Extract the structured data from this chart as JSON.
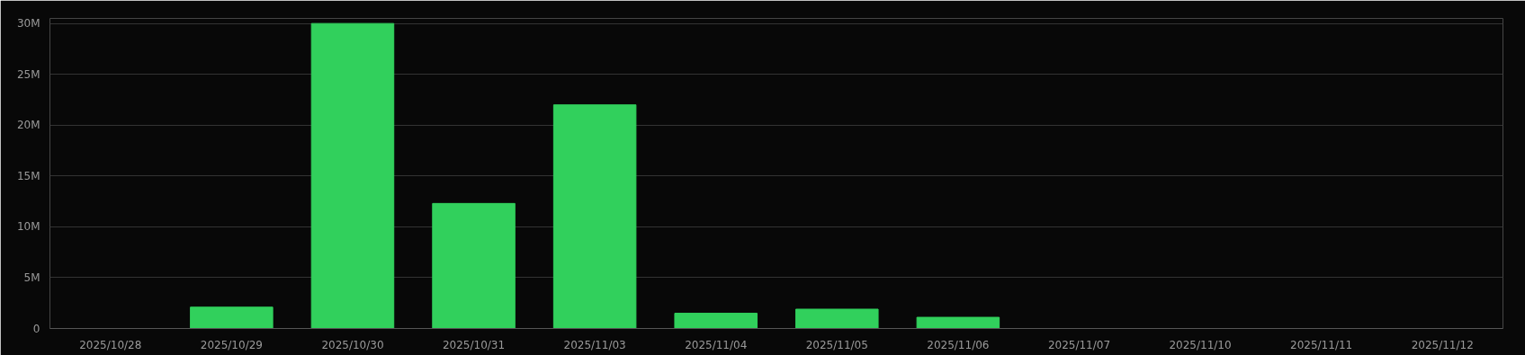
{
  "chart_data": {
    "type": "bar",
    "categories": [
      "2025/10/28",
      "2025/10/29",
      "2025/10/30",
      "2025/10/31",
      "2025/11/03",
      "2025/11/04",
      "2025/11/05",
      "2025/11/06",
      "2025/11/07",
      "2025/11/10",
      "2025/11/11",
      "2025/11/12"
    ],
    "series": [
      {
        "color": "#31d05c",
        "values": [
          0,
          2.1,
          30.0,
          12.3,
          22.0,
          1.5,
          1.9,
          1.1,
          0,
          0,
          0,
          0
        ]
      }
    ],
    "ylim": [
      0,
      30.5
    ],
    "yticks": [
      {
        "value": 0,
        "label": "0"
      },
      {
        "value": 5,
        "label": "5M"
      },
      {
        "value": 10,
        "label": "10M"
      },
      {
        "value": 15,
        "label": "15M"
      },
      {
        "value": 20,
        "label": "20M"
      },
      {
        "value": 25,
        "label": "25M"
      },
      {
        "value": 30,
        "label": "30M"
      }
    ],
    "grid": "y"
  }
}
